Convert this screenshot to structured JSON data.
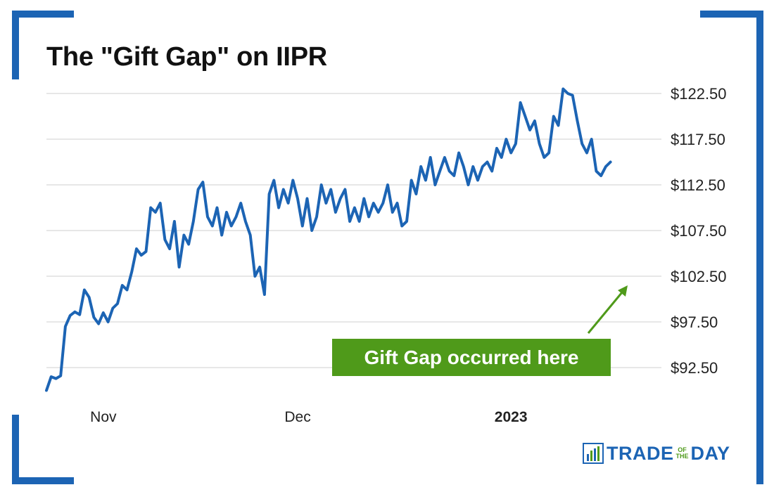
{
  "colors": {
    "frame": "#1c64b4",
    "line": "#1c64b4",
    "grid": "#cfcfcf",
    "annotation_bg": "#4f9a1a",
    "annotation_text": "#ffffff",
    "arrow": "#4f9a1a"
  },
  "annotation": {
    "text": "Gift Gap occurred here"
  },
  "logo": {
    "part1": "TRADE",
    "small_top": "OF",
    "small_bottom": "THE",
    "part2": "DAY",
    "icon": "bar-chart-icon"
  },
  "chart_data": {
    "type": "line",
    "title": "The \"Gift Gap\" on IIPR",
    "xlabel": "",
    "ylabel": "",
    "ylim": [
      88.5,
      123.5
    ],
    "yticks": [
      92.5,
      97.5,
      102.5,
      107.5,
      112.5,
      117.5,
      122.5
    ],
    "ytick_labels": [
      "$92.50",
      "$97.50",
      "$102.50",
      "$107.50",
      "$112.50",
      "$117.50",
      "$122.50"
    ],
    "x_count": 130,
    "xtick_positions": [
      12,
      53,
      98
    ],
    "xtick_labels": [
      "Nov",
      "Dec",
      "2023"
    ],
    "xtick_bold": [
      false,
      false,
      true
    ],
    "series": [
      {
        "name": "IIPR price",
        "segments": [
          [
            [
              0,
              90.0
            ],
            [
              1,
              91.5
            ],
            [
              2,
              91.3
            ],
            [
              3,
              91.6
            ],
            [
              4,
              97.0
            ],
            [
              5,
              98.2
            ],
            [
              6,
              98.6
            ],
            [
              7,
              98.3
            ],
            [
              8,
              101.0
            ],
            [
              9,
              100.2
            ],
            [
              10,
              98.0
            ],
            [
              11,
              97.3
            ],
            [
              12,
              98.5
            ],
            [
              13,
              97.5
            ],
            [
              14,
              99.0
            ],
            [
              15,
              99.5
            ],
            [
              16,
              101.5
            ],
            [
              17,
              101.0
            ],
            [
              18,
              103.0
            ],
            [
              19,
              105.5
            ],
            [
              20,
              104.8
            ],
            [
              21,
              105.2
            ],
            [
              22,
              110.0
            ],
            [
              23,
              109.5
            ],
            [
              24,
              110.5
            ],
            [
              25,
              106.5
            ],
            [
              26,
              105.5
            ],
            [
              27,
              108.5
            ],
            [
              28,
              103.5
            ],
            [
              29,
              107.0
            ],
            [
              30,
              106.0
            ],
            [
              31,
              108.5
            ],
            [
              32,
              112.0
            ],
            [
              33,
              112.8
            ],
            [
              34,
              109.0
            ],
            [
              35,
              108.0
            ],
            [
              36,
              110.0
            ],
            [
              37,
              107.0
            ],
            [
              38,
              109.5
            ],
            [
              39,
              108.0
            ],
            [
              40,
              109.0
            ],
            [
              41,
              110.5
            ],
            [
              42,
              108.5
            ],
            [
              43,
              107.0
            ],
            [
              44,
              102.5
            ],
            [
              45,
              103.5
            ],
            [
              46,
              100.5
            ],
            [
              47,
              111.5
            ],
            [
              48,
              113.0
            ],
            [
              49,
              110.0
            ],
            [
              50,
              112.0
            ],
            [
              51,
              110.5
            ],
            [
              52,
              113.0
            ],
            [
              53,
              111.0
            ],
            [
              54,
              108.0
            ],
            [
              55,
              111.0
            ],
            [
              56,
              107.5
            ],
            [
              57,
              109.0
            ],
            [
              58,
              112.5
            ],
            [
              59,
              110.5
            ],
            [
              60,
              112.0
            ],
            [
              61,
              109.5
            ],
            [
              62,
              111.0
            ],
            [
              63,
              112.0
            ],
            [
              64,
              108.5
            ],
            [
              65,
              110.0
            ],
            [
              66,
              108.5
            ],
            [
              67,
              111.0
            ],
            [
              68,
              109.0
            ],
            [
              69,
              110.5
            ],
            [
              70,
              109.5
            ],
            [
              71,
              110.5
            ],
            [
              72,
              112.5
            ],
            [
              73,
              109.5
            ],
            [
              74,
              110.5
            ],
            [
              75,
              108.0
            ],
            [
              76,
              108.5
            ],
            [
              77,
              113.0
            ],
            [
              78,
              111.5
            ],
            [
              79,
              114.5
            ],
            [
              80,
              113.0
            ],
            [
              81,
              115.5
            ],
            [
              82,
              112.5
            ],
            [
              83,
              114.0
            ],
            [
              84,
              115.5
            ],
            [
              85,
              114.0
            ],
            [
              86,
              113.5
            ],
            [
              87,
              116.0
            ],
            [
              88,
              114.5
            ],
            [
              89,
              112.5
            ],
            [
              90,
              114.5
            ],
            [
              91,
              113.0
            ],
            [
              92,
              114.5
            ],
            [
              93,
              115.0
            ],
            [
              94,
              114.0
            ],
            [
              95,
              116.5
            ],
            [
              96,
              115.5
            ],
            [
              97,
              117.5
            ],
            [
              98,
              116.0
            ],
            [
              99,
              117.0
            ],
            [
              100,
              121.5
            ],
            [
              101,
              120.0
            ],
            [
              102,
              118.5
            ],
            [
              103,
              119.5
            ],
            [
              104,
              117.0
            ],
            [
              105,
              115.5
            ],
            [
              106,
              116.0
            ],
            [
              107,
              120.0
            ],
            [
              108,
              119.0
            ],
            [
              109,
              123.0
            ],
            [
              110,
              122.5
            ],
            [
              111,
              122.3
            ],
            [
              112,
              119.5
            ],
            [
              113,
              117.0
            ],
            [
              114,
              116.0
            ],
            [
              115,
              117.5
            ],
            [
              116,
              114.0
            ],
            [
              117,
              113.5
            ],
            [
              118,
              114.5
            ],
            [
              119,
              115.0
            ]
          ]
        ]
      }
    ]
  }
}
